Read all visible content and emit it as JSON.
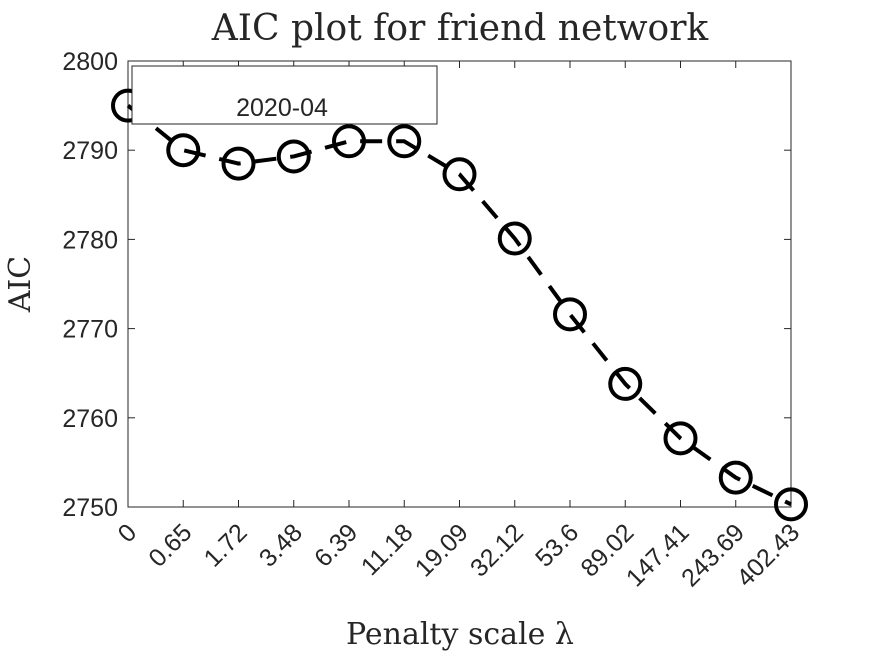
{
  "chart_data": {
    "type": "line",
    "title": "AIC plot for friend network",
    "xlabel": "Penalty scale λ",
    "ylabel": "AIC",
    "categories": [
      "0",
      "0.65",
      "1.72",
      "3.48",
      "6.39",
      "11.18",
      "19.09",
      "32.12",
      "53.6",
      "89.02",
      "147.41",
      "243.69",
      "402.43"
    ],
    "series": [
      {
        "values": [
          2795,
          2790,
          2788.5,
          2789.3,
          2791,
          2791,
          2787.3,
          2780.1,
          2771.6,
          2763.8,
          2757.7,
          2753.3,
          2750.3
        ],
        "color": "#000000",
        "line_style": "dashed",
        "marker": "circle-open"
      }
    ],
    "ylim": [
      2750,
      2800
    ],
    "yticks": [
      2750,
      2760,
      2770,
      2780,
      2790,
      2800
    ],
    "grid": false,
    "annotations": [
      {
        "text": "2020-04",
        "placement": "top-left inside axes, boxed"
      }
    ]
  }
}
